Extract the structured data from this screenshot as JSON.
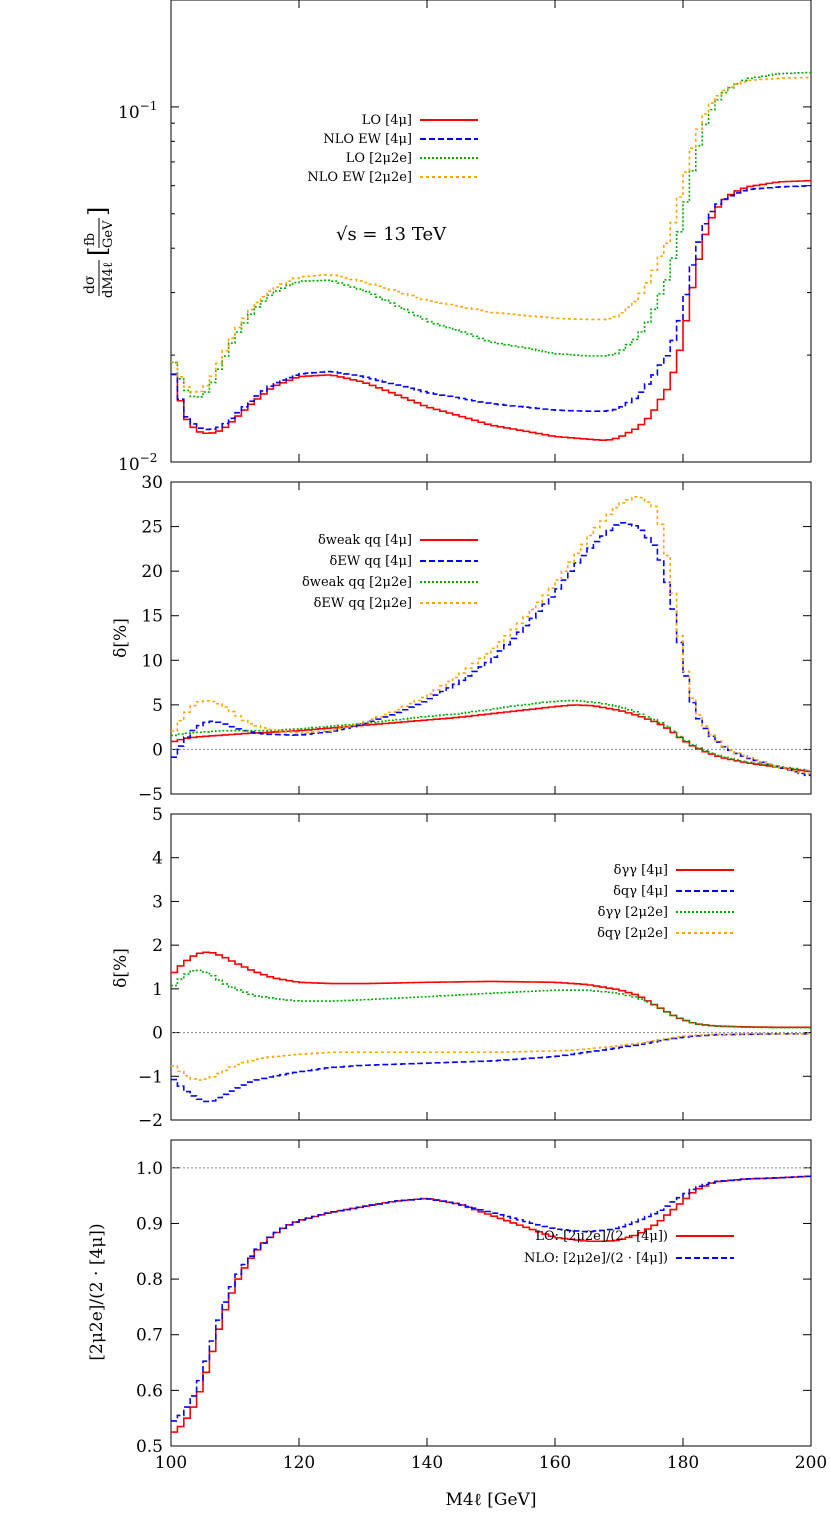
{
  "chart_data": [
    {
      "type": "line",
      "panel": "cross-section",
      "ylabel_top": "fb",
      "ylabel_bottom": "GeV",
      "ylabel_num": "dσ",
      "ylabel_den": "dM4ℓ",
      "yscale": "log",
      "xlim": [
        100,
        200
      ],
      "ylim": [
        0.01,
        0.2
      ],
      "yticks_major": [
        "10",
        "10"
      ],
      "yticks_major_exp": [
        "−1",
        "−2"
      ],
      "annotation": "√s = 13 TeV",
      "x": [
        100,
        102,
        104,
        106,
        108,
        110,
        113,
        116,
        120,
        125,
        130,
        140,
        150,
        160,
        165,
        168,
        170,
        173,
        175,
        178,
        180,
        182,
        184,
        186,
        188,
        190,
        195,
        200
      ],
      "series": [
        {
          "name": "LO [4μ]",
          "color": "#ff0000",
          "dash": "",
          "values": [
            0.019,
            0.0135,
            0.0122,
            0.012,
            0.0123,
            0.0132,
            0.0148,
            0.0163,
            0.0174,
            0.0176,
            0.0168,
            0.0143,
            0.0127,
            0.0118,
            0.0116,
            0.0115,
            0.0117,
            0.0125,
            0.0135,
            0.0165,
            0.022,
            0.034,
            0.047,
            0.054,
            0.0575,
            0.0595,
            0.0615,
            0.062
          ]
        },
        {
          "name": "NLO EW [4μ]",
          "color": "#0000ff",
          "dash": "6,3",
          "values": [
            0.019,
            0.0137,
            0.0125,
            0.0123,
            0.0126,
            0.0135,
            0.0151,
            0.0166,
            0.0177,
            0.018,
            0.0174,
            0.0157,
            0.0146,
            0.014,
            0.0139,
            0.0139,
            0.0141,
            0.0153,
            0.017,
            0.0205,
            0.0265,
            0.039,
            0.0495,
            0.0545,
            0.0568,
            0.0585,
            0.0595,
            0.06
          ]
        },
        {
          "name": "LO [2μ2e]",
          "color": "#00aa00",
          "dash": "2,2",
          "values": [
            0.02,
            0.0162,
            0.015,
            0.016,
            0.019,
            0.0225,
            0.0268,
            0.03,
            0.0323,
            0.0325,
            0.0305,
            0.025,
            0.0218,
            0.0202,
            0.0199,
            0.0199,
            0.0203,
            0.0225,
            0.0255,
            0.034,
            0.048,
            0.072,
            0.095,
            0.108,
            0.115,
            0.12,
            0.124,
            0.125
          ]
        },
        {
          "name": "NLO EW [2μ2e]",
          "color": "#ffa500",
          "dash": "3,3",
          "values": [
            0.02,
            0.0165,
            0.0155,
            0.0167,
            0.0197,
            0.0232,
            0.0276,
            0.0308,
            0.0332,
            0.0337,
            0.0322,
            0.0285,
            0.0264,
            0.0254,
            0.0252,
            0.0252,
            0.0258,
            0.0288,
            0.033,
            0.043,
            0.06,
            0.082,
            0.1,
            0.11,
            0.115,
            0.1185,
            0.1205,
            0.121
          ]
        }
      ]
    },
    {
      "type": "line",
      "panel": "delta-qq",
      "ylabel": "δ[%]",
      "xlim": [
        100,
        200
      ],
      "ylim": [
        -5,
        30
      ],
      "yticks": [
        -5,
        0,
        5,
        10,
        15,
        20,
        25,
        30
      ],
      "x": [
        100,
        102,
        104,
        106,
        108,
        110,
        112,
        115,
        120,
        125,
        130,
        135,
        140,
        145,
        150,
        155,
        160,
        163,
        166,
        170,
        173,
        176,
        178,
        179,
        180,
        181,
        182,
        184,
        186,
        188,
        190,
        195,
        200
      ],
      "series": [
        {
          "name": "δweak qq [4μ]",
          "color": "#ff0000",
          "dash": "",
          "values": [
            0.8,
            1.2,
            1.4,
            1.5,
            1.6,
            1.7,
            1.8,
            1.9,
            2.1,
            2.4,
            2.7,
            3.0,
            3.3,
            3.6,
            4.0,
            4.4,
            4.8,
            5.0,
            4.9,
            4.4,
            3.8,
            3.0,
            2.2,
            1.6,
            1.1,
            0.6,
            0.2,
            -0.4,
            -0.9,
            -1.2,
            -1.5,
            -2.0,
            -2.5
          ]
        },
        {
          "name": "δEW qq [4μ]",
          "color": "#0000ff",
          "dash": "6,3",
          "values": [
            -1.5,
            1.0,
            2.5,
            3.2,
            3.0,
            2.4,
            2.0,
            1.7,
            1.6,
            2.0,
            2.8,
            4.0,
            5.5,
            7.5,
            10.0,
            13.5,
            17.5,
            20.5,
            23.0,
            25.5,
            25.0,
            22.5,
            17.5,
            14.0,
            10.0,
            6.5,
            4.0,
            1.8,
            0.5,
            -0.3,
            -0.9,
            -2.0,
            -3.0
          ]
        },
        {
          "name": "δweak qq [2μ2e]",
          "color": "#00aa00",
          "dash": "2,2",
          "values": [
            1.5,
            1.8,
            1.9,
            2.0,
            2.1,
            2.1,
            2.1,
            2.1,
            2.3,
            2.6,
            2.9,
            3.3,
            3.7,
            4.0,
            4.5,
            5.0,
            5.4,
            5.5,
            5.3,
            4.8,
            4.1,
            3.2,
            2.4,
            1.7,
            1.2,
            0.7,
            0.3,
            -0.3,
            -0.8,
            -1.1,
            -1.4,
            -1.9,
            -2.4
          ]
        },
        {
          "name": "δEW qq [2μ2e]",
          "color": "#ffa500",
          "dash": "3,3",
          "values": [
            1.5,
            3.8,
            5.3,
            5.5,
            5.0,
            4.0,
            3.0,
            2.3,
            1.8,
            2.1,
            3.0,
            4.3,
            6.0,
            8.3,
            11.0,
            14.5,
            18.5,
            21.5,
            24.5,
            27.5,
            28.5,
            27.0,
            20.0,
            15.0,
            10.5,
            7.0,
            4.5,
            2.0,
            0.6,
            -0.3,
            -0.8,
            -2.0,
            -2.8
          ]
        }
      ]
    },
    {
      "type": "line",
      "panel": "delta-photon",
      "ylabel": "δ[%]",
      "xlim": [
        100,
        200
      ],
      "ylim": [
        -2,
        5
      ],
      "yticks": [
        -2,
        -1,
        0,
        1,
        2,
        3,
        4,
        5
      ],
      "x": [
        100,
        102,
        104,
        106,
        108,
        110,
        113,
        116,
        120,
        125,
        130,
        140,
        150,
        160,
        165,
        170,
        173,
        176,
        179,
        182,
        185,
        190,
        195,
        200
      ],
      "series": [
        {
          "name": "δγγ [4μ]",
          "color": "#ff0000",
          "dash": "",
          "values": [
            1.3,
            1.6,
            1.8,
            1.85,
            1.75,
            1.6,
            1.4,
            1.25,
            1.15,
            1.12,
            1.12,
            1.15,
            1.17,
            1.15,
            1.1,
            0.98,
            0.85,
            0.6,
            0.35,
            0.2,
            0.15,
            0.13,
            0.12,
            0.12
          ]
        },
        {
          "name": "δqγ [4μ]",
          "color": "#0000ff",
          "dash": "6,3",
          "values": [
            -1.0,
            -1.3,
            -1.5,
            -1.6,
            -1.45,
            -1.3,
            -1.1,
            -1.0,
            -0.9,
            -0.8,
            -0.75,
            -0.7,
            -0.65,
            -0.55,
            -0.45,
            -0.35,
            -0.28,
            -0.2,
            -0.12,
            -0.08,
            -0.05,
            -0.04,
            -0.03,
            -0.03
          ]
        },
        {
          "name": "δγγ [2μ2e]",
          "color": "#00aa00",
          "dash": "2,2",
          "values": [
            1.0,
            1.3,
            1.45,
            1.35,
            1.15,
            1.0,
            0.85,
            0.78,
            0.72,
            0.72,
            0.75,
            0.82,
            0.9,
            0.97,
            0.97,
            0.9,
            0.8,
            0.6,
            0.35,
            0.2,
            0.15,
            0.12,
            0.11,
            0.11
          ]
        },
        {
          "name": "δqγ [2μ2e]",
          "color": "#ffa500",
          "dash": "3,3",
          "values": [
            -0.7,
            -0.95,
            -1.1,
            -1.05,
            -0.9,
            -0.75,
            -0.62,
            -0.55,
            -0.5,
            -0.45,
            -0.45,
            -0.45,
            -0.45,
            -0.42,
            -0.38,
            -0.3,
            -0.25,
            -0.18,
            -0.1,
            -0.06,
            -0.04,
            -0.03,
            -0.03,
            -0.03
          ]
        }
      ]
    },
    {
      "type": "line",
      "panel": "ratio",
      "ylabel": "[2μ2e]/(2 · [4μ])",
      "xlabel": "M4ℓ [GeV]",
      "xlim": [
        100,
        200
      ],
      "ylim": [
        0.5,
        1.05
      ],
      "yticks": [
        "0.5",
        "0.6",
        "0.7",
        "0.8",
        "0.9",
        "1.0"
      ],
      "xticks": [
        100,
        120,
        140,
        160,
        180,
        200
      ],
      "x": [
        100,
        102,
        104,
        106,
        108,
        110,
        112,
        114,
        116,
        118,
        120,
        125,
        130,
        135,
        140,
        145,
        150,
        155,
        160,
        165,
        168,
        170,
        173,
        176,
        178,
        180,
        182,
        185,
        190,
        195,
        200
      ],
      "series": [
        {
          "name": "LO: [2μ2e]/(2 · [4μ])",
          "color": "#ff0000",
          "dash": "",
          "values": [
            0.52,
            0.54,
            0.58,
            0.65,
            0.73,
            0.79,
            0.83,
            0.86,
            0.88,
            0.895,
            0.905,
            0.92,
            0.93,
            0.94,
            0.945,
            0.935,
            0.915,
            0.895,
            0.875,
            0.868,
            0.868,
            0.87,
            0.88,
            0.9,
            0.92,
            0.94,
            0.96,
            0.975,
            0.98,
            0.982,
            0.985
          ]
        },
        {
          "name": "NLO: [2μ2e]/(2 · [4μ])",
          "color": "#0000ff",
          "dash": "6,3",
          "values": [
            0.54,
            0.56,
            0.6,
            0.67,
            0.745,
            0.8,
            0.835,
            0.86,
            0.88,
            0.895,
            0.905,
            0.92,
            0.93,
            0.94,
            0.945,
            0.935,
            0.92,
            0.905,
            0.89,
            0.885,
            0.888,
            0.892,
            0.905,
            0.92,
            0.935,
            0.95,
            0.965,
            0.975,
            0.98,
            0.982,
            0.985
          ]
        }
      ]
    }
  ]
}
